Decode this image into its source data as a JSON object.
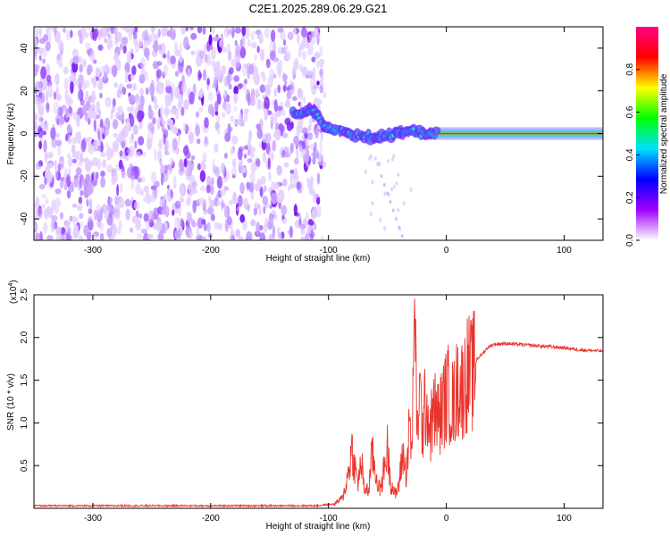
{
  "title": "C2E1.2025.289.06.29.G21",
  "chart_data": [
    {
      "type": "heatmap",
      "xlabel": "Height of straight line (km)",
      "ylabel": "Frequency (Hz)",
      "xlim": [
        -350,
        133
      ],
      "ylim": [
        -50,
        50
      ],
      "xticks": [
        -300,
        -200,
        -100,
        0,
        100
      ],
      "yticks": [
        -40,
        -20,
        0,
        20,
        40
      ],
      "grid": false,
      "colorbar": {
        "label": "Normalized spectral amplitude",
        "ticks": [
          0.0,
          0.2,
          0.4,
          0.6,
          0.8
        ],
        "range": [
          0,
          1
        ],
        "colors": [
          "#ffffff",
          "#a000ff",
          "#0000ff",
          "#00e0ff",
          "#00ff00",
          "#ffff00",
          "#ff0000",
          "#ff0080"
        ]
      },
      "features": {
        "noise_region_x": [
          -350,
          -105
        ],
        "signal_track": [
          {
            "x": -130,
            "y": 10
          },
          {
            "x": -120,
            "y": 10
          },
          {
            "x": -110,
            "y": 9
          },
          {
            "x": -100,
            "y": 2
          },
          {
            "x": -90,
            "y": 1
          },
          {
            "x": -80,
            "y": 0
          },
          {
            "x": -70,
            "y": -1
          },
          {
            "x": -60,
            "y": -2
          },
          {
            "x": -50,
            "y": -1
          },
          {
            "x": -40,
            "y": 1
          },
          {
            "x": -30,
            "y": 1
          },
          {
            "x": -20,
            "y": 0
          },
          {
            "x": -10,
            "y": 0
          },
          {
            "x": 0,
            "y": 0
          },
          {
            "x": 50,
            "y": 0
          },
          {
            "x": 100,
            "y": 0
          },
          {
            "x": 133,
            "y": 0
          }
        ]
      }
    },
    {
      "type": "line",
      "xlabel": "Height of straight line (km)",
      "ylabel": "SNR (10 * v/v)",
      "y_multiplier": "(x10^4)",
      "multiplier_base": "(x10",
      "multiplier_exp": "4",
      "multiplier_close": ")",
      "xlim": [
        -350,
        133
      ],
      "ylim": [
        0,
        2.5
      ],
      "xticks": [
        -300,
        -200,
        -100,
        0,
        100
      ],
      "yticks": [
        0.5,
        1.0,
        1.5,
        2.0,
        2.5
      ],
      "grid": false,
      "series": [
        {
          "color": "#e8342c",
          "points": [
            [
              -350,
              0.03
            ],
            [
              -300,
              0.03
            ],
            [
              -250,
              0.03
            ],
            [
              -200,
              0.03
            ],
            [
              -150,
              0.03
            ],
            [
              -110,
              0.03
            ],
            [
              -95,
              0.05
            ],
            [
              -88,
              0.12
            ],
            [
              -84,
              0.35
            ],
            [
              -80,
              0.7
            ],
            [
              -78,
              0.5
            ],
            [
              -75,
              0.3
            ],
            [
              -72,
              0.55
            ],
            [
              -70,
              0.25
            ],
            [
              -66,
              0.2
            ],
            [
              -63,
              0.65
            ],
            [
              -60,
              0.4
            ],
            [
              -56,
              0.2
            ],
            [
              -53,
              0.45
            ],
            [
              -50,
              0.7
            ],
            [
              -47,
              0.3
            ],
            [
              -43,
              0.15
            ],
            [
              -40,
              0.3
            ],
            [
              -37,
              0.65
            ],
            [
              -34,
              0.4
            ],
            [
              -31,
              1.0
            ],
            [
              -29,
              0.6
            ],
            [
              -27,
              2.5
            ],
            [
              -25,
              0.8
            ],
            [
              -23,
              1.4
            ],
            [
              -20,
              0.9
            ],
            [
              -17,
              1.3
            ],
            [
              -14,
              0.9
            ],
            [
              -10,
              1.15
            ],
            [
              -6,
              1.05
            ],
            [
              -2,
              1.25
            ],
            [
              2,
              1.35
            ],
            [
              6,
              1.2
            ],
            [
              10,
              1.45
            ],
            [
              14,
              1.4
            ],
            [
              18,
              1.6
            ],
            [
              22,
              1.55
            ],
            [
              26,
              1.75
            ],
            [
              30,
              1.8
            ],
            [
              35,
              1.88
            ],
            [
              40,
              1.92
            ],
            [
              50,
              1.93
            ],
            [
              60,
              1.92
            ],
            [
              70,
              1.91
            ],
            [
              80,
              1.9
            ],
            [
              90,
              1.89
            ],
            [
              100,
              1.88
            ],
            [
              110,
              1.86
            ],
            [
              120,
              1.85
            ],
            [
              133,
              1.84
            ]
          ]
        }
      ]
    }
  ]
}
